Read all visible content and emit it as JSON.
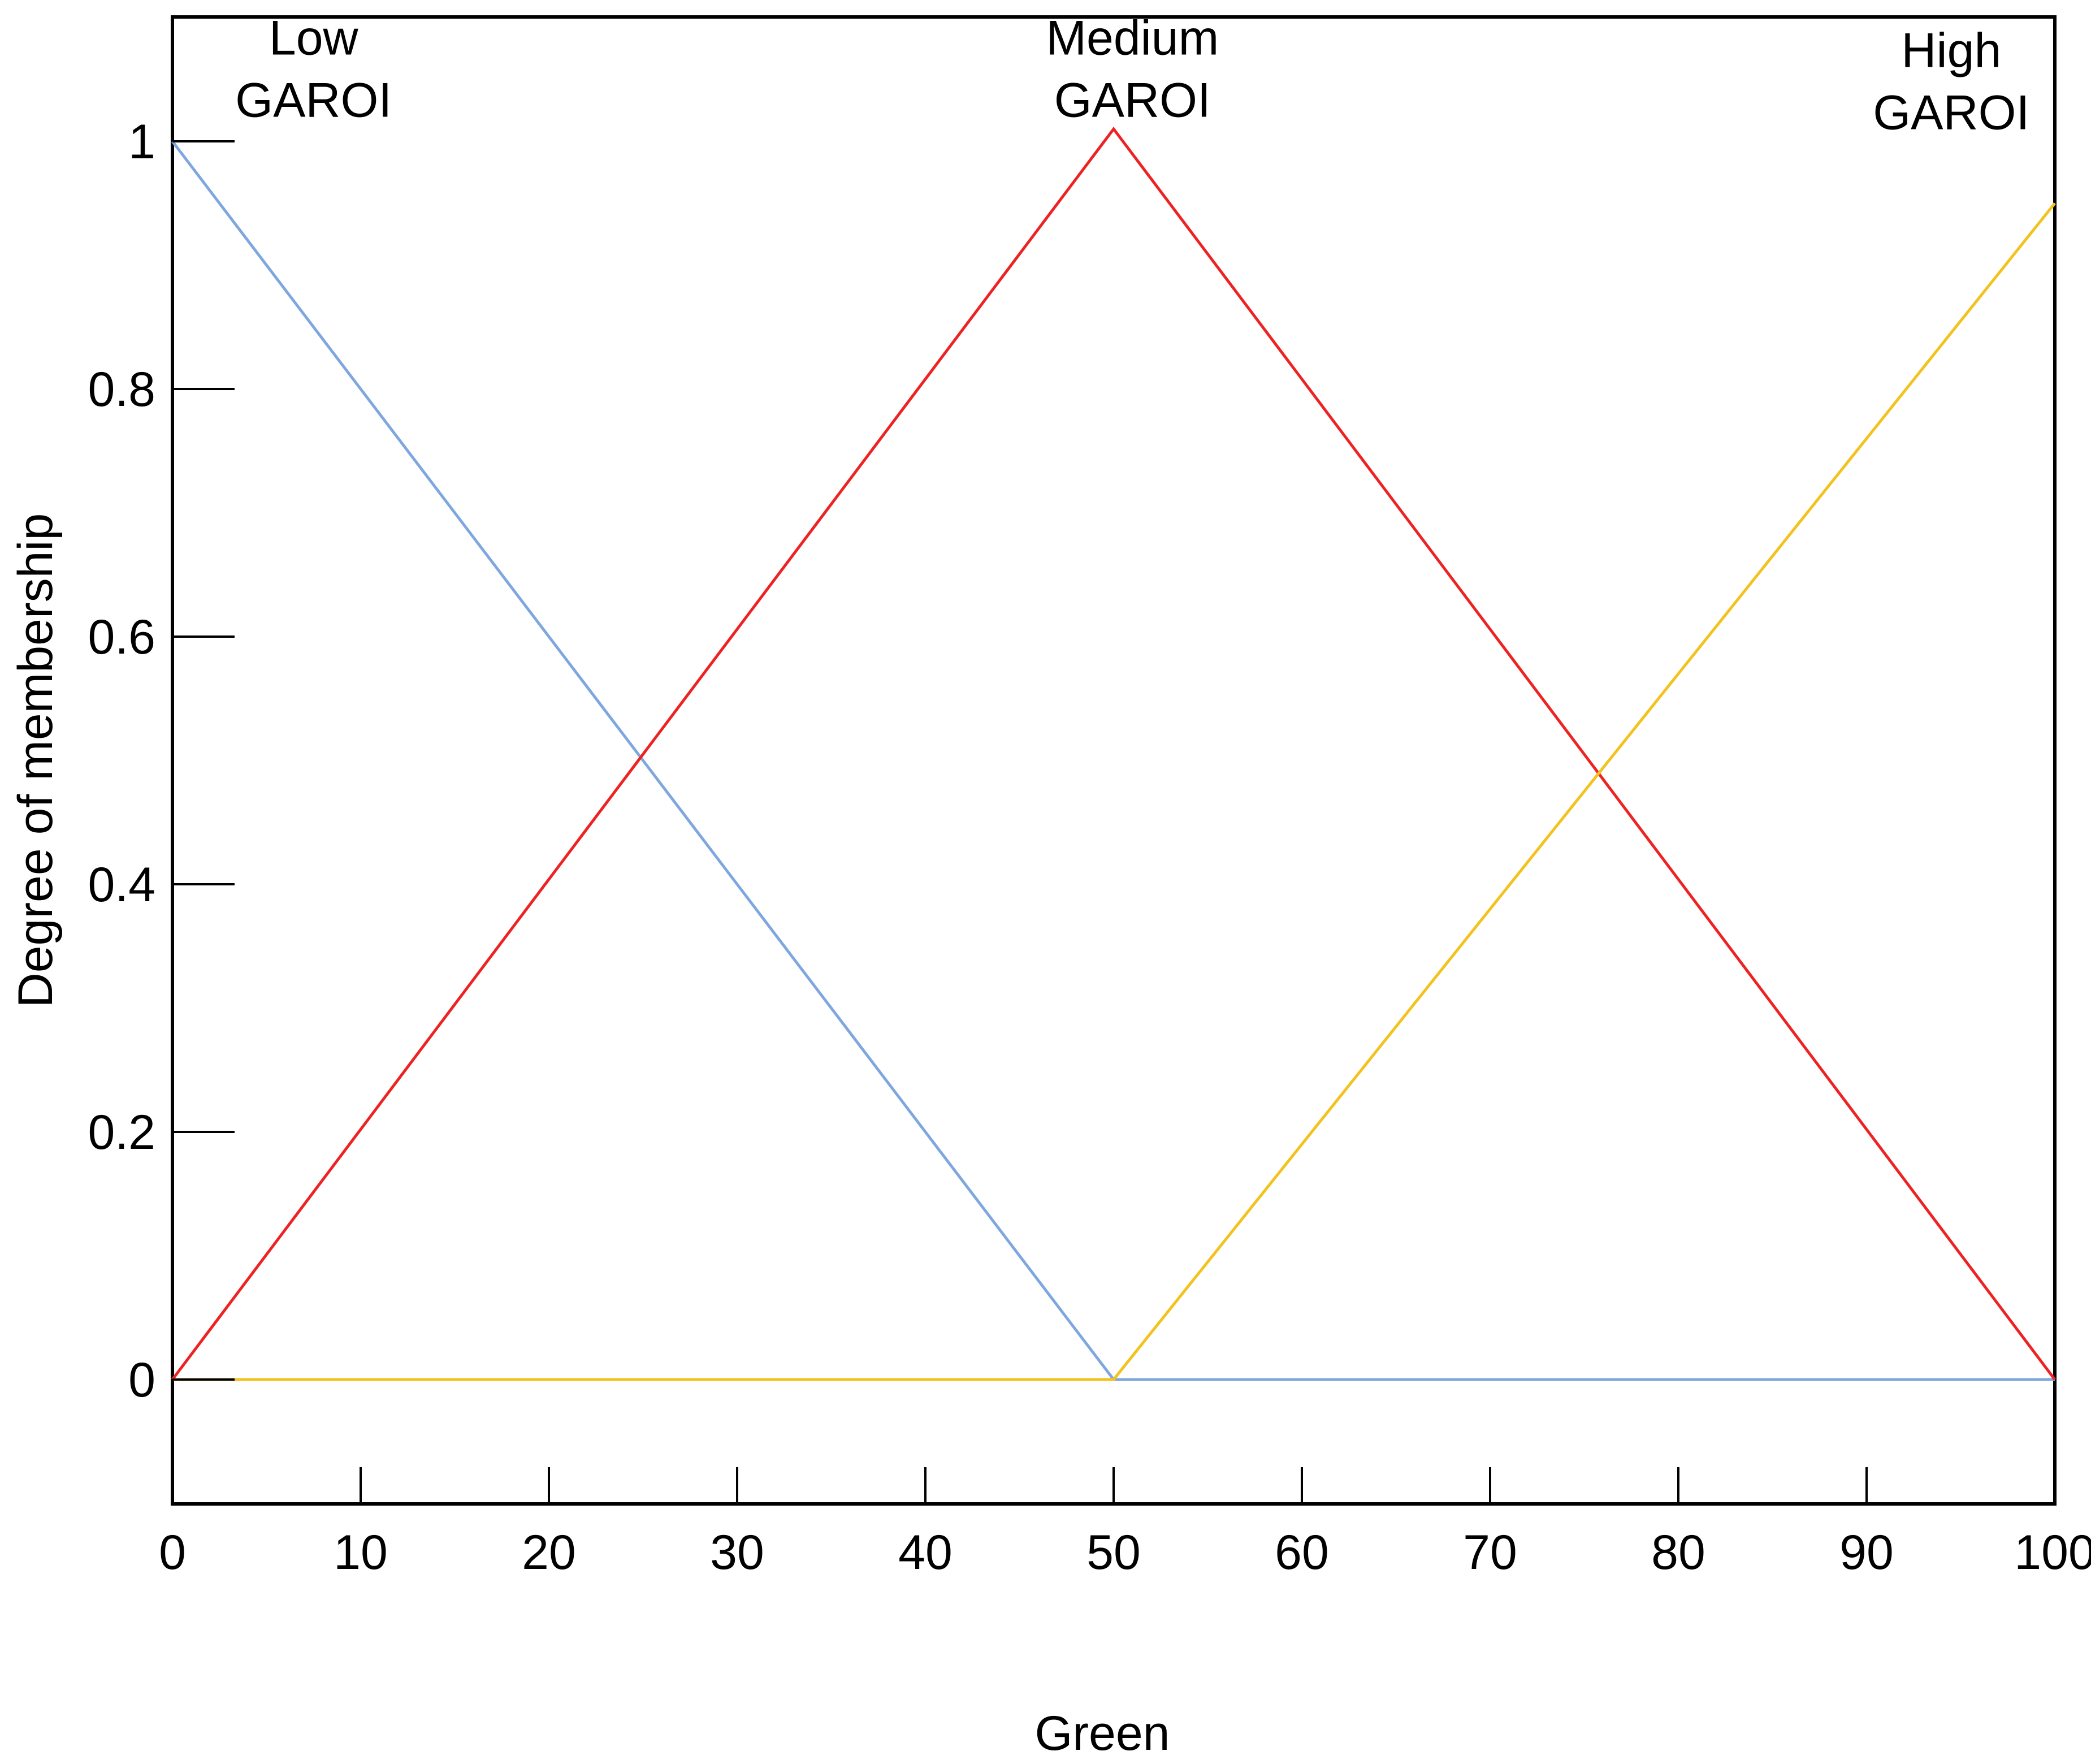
{
  "chart_data": {
    "type": "line",
    "title": "",
    "xlabel": "Green",
    "ylabel": "Degree of membership",
    "xlim": [
      0,
      100
    ],
    "ylim": [
      -0.1,
      1.1
    ],
    "grid": false,
    "x_ticks": [
      0,
      10,
      20,
      30,
      40,
      50,
      60,
      70,
      80,
      90,
      100
    ],
    "x_tick_labels": [
      "0",
      "10",
      "20",
      "30",
      "40",
      "50",
      "60",
      "70",
      "80",
      "90",
      "100"
    ],
    "y_ticks": [
      0,
      0.2,
      0.4,
      0.6,
      0.8,
      1
    ],
    "y_tick_labels": [
      "0",
      "0.2",
      "0.4",
      "0.6",
      "0.8",
      "1"
    ],
    "series": [
      {
        "name": "Low GAROI",
        "label_lines": [
          "Low",
          "GAROI"
        ],
        "label_anchor": [
          7.5,
          1.07
        ],
        "color": "#7fa7df",
        "points": [
          [
            0,
            1
          ],
          [
            50,
            0
          ],
          [
            100,
            0
          ]
        ]
      },
      {
        "name": "Medium GAROI",
        "label_lines": [
          "Medium",
          "GAROI"
        ],
        "label_anchor": [
          51,
          1.07
        ],
        "color": "#ee2222",
        "points": [
          [
            0,
            0
          ],
          [
            50,
            1.01
          ],
          [
            100,
            0
          ]
        ]
      },
      {
        "name": "High GAROI",
        "label_lines": [
          "High",
          "GAROI"
        ],
        "label_anchor": [
          94.5,
          1.06
        ],
        "color": "#f2c31e",
        "points": [
          [
            0,
            0
          ],
          [
            50,
            0
          ],
          [
            100,
            0.95
          ]
        ]
      }
    ]
  }
}
